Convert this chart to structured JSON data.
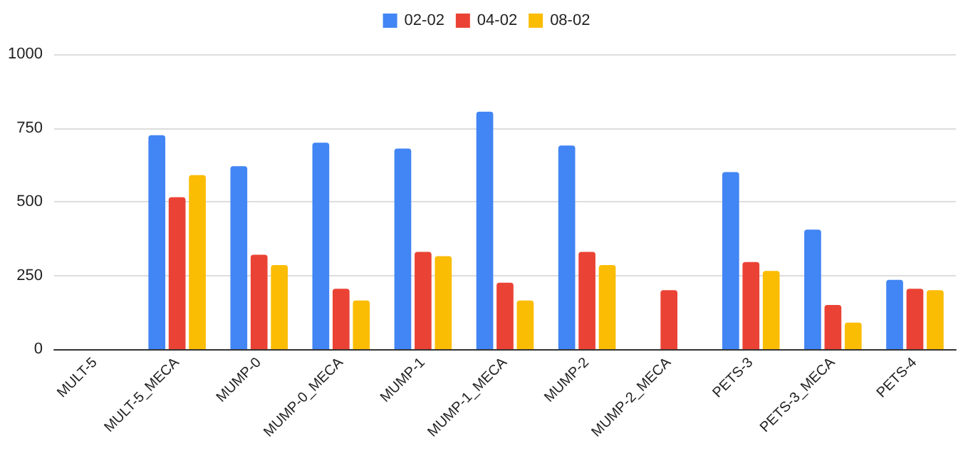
{
  "chart_data": {
    "type": "bar",
    "categories": [
      "MULT-5",
      "MULT-5_MECA",
      "MUMP-0",
      "MUMP-0_MECA",
      "MUMP-1",
      "MUMP-1_MECA",
      "MUMP-2",
      "MUMP-2_MECA",
      "PETS-3",
      "PETS-3_MECA",
      "PETS-4"
    ],
    "series": [
      {
        "name": "02-02",
        "color": "#4285f4",
        "values": [
          null,
          725,
          620,
          700,
          680,
          805,
          690,
          null,
          600,
          405,
          235
        ]
      },
      {
        "name": "04-02",
        "color": "#ea4335",
        "values": [
          null,
          515,
          320,
          205,
          330,
          225,
          330,
          200,
          295,
          150,
          205
        ]
      },
      {
        "name": "08-02",
        "color": "#fbbc04",
        "values": [
          null,
          590,
          285,
          165,
          315,
          165,
          285,
          null,
          265,
          90,
          200
        ]
      }
    ],
    "ylim": [
      0,
      1000
    ],
    "yticks": [
      0,
      250,
      500,
      750,
      1000
    ],
    "grid": "y",
    "legend": "top"
  }
}
